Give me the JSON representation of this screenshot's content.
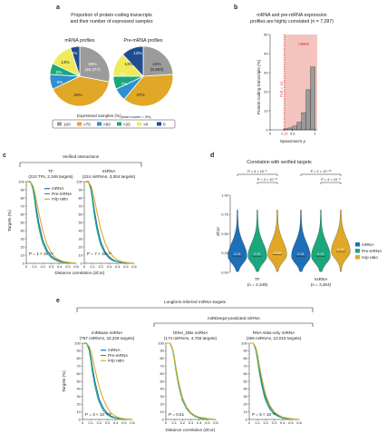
{
  "panels": {
    "a": {
      "label": "a",
      "title_lines": [
        "Proportion of protein-coding transcripts",
        "and their number of expressed samples"
      ],
      "legend_title_prefix": "Expressed samples (%)",
      "legend_title_suffix": "(read counts > 3%)",
      "legend_items": [
        {
          "label": "100",
          "color": "#9b9b9b"
        },
        {
          "label": ">75",
          "color": "#e0a826"
        },
        {
          "label": ">50",
          "color": "#2f8fcf"
        },
        {
          "label": ">25",
          "color": "#1aa77c"
        },
        {
          "label": ">0",
          "color": "#f0ea5a"
        },
        {
          "label": "0",
          "color": "#1f4e8f"
        }
      ]
    },
    "b": {
      "label": "b",
      "title_lines": [
        "mRNA and pre-mRNA expression",
        "profiles are highly correlated (n = 7,287)"
      ],
      "fdr_label": "FDR < .01",
      "percent_label": ">99%",
      "threshold_label": "0.32"
    },
    "c": {
      "label": "c",
      "group_label": "Verified interactions",
      "subplots": [
        {
          "title": "TF",
          "subtitle": "(210 TFs, 2,349 targets)",
          "pvalue": "P = 1 × 10⁻¹⁴"
        },
        {
          "title": "miRNA",
          "subtitle": "(224 miRNAs, 3,304 targets)",
          "pvalue": "P = 7 × 10⁻¹³"
        }
      ],
      "legend": [
        "mRNA",
        "Pre-mRNA",
        "m/p ratio"
      ]
    },
    "d": {
      "label": "d",
      "title": "Correlation with verified targets",
      "brackets": [
        {
          "top": "P = 4 × 10⁻⁶",
          "inner": "P = 3 × 10⁻¹⁷"
        },
        {
          "top": "P = 2 × 10⁻¹⁰",
          "inner": "P = 4 × 10⁻⁸"
        }
      ],
      "groups": [
        {
          "name": "TF",
          "n": "(n = 2,349)"
        },
        {
          "name": "miRNA",
          "n": "(n = 3,304)"
        }
      ],
      "legend": [
        "mRNA",
        "Pre-mRNA",
        "m/p ratio"
      ]
    },
    "e": {
      "label": "e",
      "group_label": "Longform-inferred miRNA-targets",
      "subgroup_label": "miRDeep2-predicted miRNA",
      "subplots": [
        {
          "title": "miRBase miRNA",
          "subtitle": "(757 miRNAs, 33,228 targets)",
          "pvalue": "P = 3 × 10⁻²⁰⁸"
        },
        {
          "title": "Other_DBs miRNA",
          "subtitle": "(174 miRNAs, 4,755 targets)",
          "pvalue": "P = 0.61"
        },
        {
          "title": "RNA Atlas-only miRNA",
          "subtitle": "(369 miRNAs, 10,016 targets)",
          "pvalue": "P = 5 × 10⁻⁸"
        }
      ],
      "legend": [
        "mRNA",
        "Pre-mRNA",
        "m/p ratio"
      ]
    }
  },
  "colors": {
    "mrna": "#1d6fb8",
    "premrna": "#1aa77c",
    "mp_ratio": "#e0a826",
    "hist_bar": "#9b9b9b",
    "shade": "#f3b8b3",
    "fdr_line": "#d22222"
  },
  "chart_data": [
    {
      "type": "pie",
      "panel": "a",
      "title": "mRNA profiles",
      "labels": [
        "100",
        ">75",
        ">50",
        ">25",
        ">0",
        "0"
      ],
      "values": [
        28,
        40,
        8,
        6,
        13,
        5
      ],
      "annotations": [
        "28%",
        "(10,477)",
        "40%",
        "8%",
        "6%",
        "13%",
        "5%"
      ]
    },
    {
      "type": "pie",
      "panel": "a",
      "title": "Pre-mRNA profiles",
      "labels": [
        "100",
        ">75",
        ">50",
        ">25",
        ">0",
        "0"
      ],
      "values": [
        24,
        37,
        7,
        7,
        13,
        12
      ],
      "annotations": [
        "24%",
        "(9,063)",
        "37%",
        "7%",
        "7%",
        "13%",
        "12%"
      ]
    },
    {
      "type": "bar",
      "panel": "b",
      "xlabel": "Spearman's ρ",
      "ylabel": "Protein-coding transcripts (%)",
      "bin_edges": [
        0,
        0.1,
        0.2,
        0.3,
        0.4,
        0.5,
        0.6,
        0.7,
        0.8,
        0.9,
        1.0
      ],
      "values": [
        0,
        0,
        0,
        0.5,
        1,
        2,
        4,
        9,
        21,
        33,
        44
      ],
      "ylim": [
        0,
        50
      ],
      "yticks": [
        0,
        10,
        20,
        30,
        40,
        50
      ],
      "xticks": [
        "0",
        "0.32",
        "0.5",
        "1"
      ],
      "threshold": 0.32
    },
    {
      "type": "line",
      "panel": "c",
      "title": "TF",
      "xlabel": "Distance correlation (dCor)",
      "ylabel": "Targets (%)",
      "xlim": [
        0,
        0.6
      ],
      "ylim": [
        0,
        100
      ],
      "xticks": [
        0,
        0.1,
        0.2,
        0.3,
        0.4,
        0.5,
        0.6
      ],
      "yticks": [
        0,
        10,
        20,
        30,
        40,
        50,
        60,
        70,
        80,
        90,
        100
      ],
      "x": [
        0,
        0.05,
        0.08,
        0.1,
        0.12,
        0.15,
        0.18,
        0.2,
        0.25,
        0.3,
        0.35,
        0.4,
        0.45,
        0.5,
        0.55,
        0.6
      ],
      "series": [
        {
          "name": "mRNA",
          "values": [
            100,
            100,
            93,
            82,
            68,
            50,
            36,
            28,
            16,
            9,
            5,
            3,
            2,
            1,
            0.5,
            0
          ]
        },
        {
          "name": "Pre-mRNA",
          "values": [
            100,
            100,
            91,
            78,
            62,
            44,
            31,
            24,
            13,
            7,
            4,
            2,
            1,
            0.5,
            0.3,
            0
          ]
        },
        {
          "name": "m/p ratio",
          "values": [
            100,
            99,
            95,
            88,
            78,
            62,
            48,
            39,
            23,
            13,
            7,
            4,
            2,
            1,
            0.5,
            0
          ]
        }
      ]
    },
    {
      "type": "line",
      "panel": "c",
      "title": "miRNA",
      "xlabel": "Distance correlation (dCor)",
      "ylabel": "Targets (%)",
      "xlim": [
        0,
        0.6
      ],
      "ylim": [
        0,
        100
      ],
      "xticks": [
        0,
        0.1,
        0.2,
        0.3,
        0.4,
        0.5,
        0.6
      ],
      "yticks": [
        0,
        10,
        20,
        30,
        40,
        50,
        60,
        70,
        80,
        90,
        100
      ],
      "x": [
        0,
        0.05,
        0.08,
        0.1,
        0.12,
        0.15,
        0.18,
        0.2,
        0.25,
        0.3,
        0.35,
        0.4,
        0.45,
        0.5,
        0.55,
        0.6
      ],
      "series": [
        {
          "name": "mRNA",
          "values": [
            100,
            100,
            92,
            80,
            66,
            48,
            34,
            26,
            14,
            8,
            4,
            2,
            1,
            0.5,
            0.3,
            0
          ]
        },
        {
          "name": "Pre-mRNA",
          "values": [
            100,
            100,
            90,
            76,
            60,
            42,
            29,
            22,
            12,
            6,
            3,
            2,
            1,
            0.5,
            0.2,
            0
          ]
        },
        {
          "name": "m/p ratio",
          "values": [
            100,
            99,
            95,
            89,
            79,
            64,
            50,
            41,
            25,
            14,
            8,
            4,
            2,
            1,
            0.5,
            0
          ]
        }
      ]
    },
    {
      "type": "violin",
      "panel": "d",
      "ylabel": "dCor",
      "ylim": [
        0,
        1
      ],
      "yticks": [
        0,
        0.25,
        0.5,
        0.75,
        1.0
      ],
      "groups": [
        {
          "name": "TF",
          "series": [
            {
              "name": "mRNA",
              "median": 0.21
            },
            {
              "name": "Pre-mRNA",
              "median": 0.21
            },
            {
              "name": "m/p ratio",
              "median": 0.23
            }
          ]
        },
        {
          "name": "miRNA",
          "series": [
            {
              "name": "mRNA",
              "median": 0.21
            },
            {
              "name": "Pre-mRNA",
              "median": 0.21
            },
            {
              "name": "m/p ratio",
              "median": 0.27
            }
          ]
        }
      ]
    },
    {
      "type": "line",
      "panel": "e",
      "title": "miRBase miRNA",
      "xlabel": "Distance correlation (dCor)",
      "ylabel": "Targets (%)",
      "xlim": [
        0,
        0.6
      ],
      "ylim": [
        0,
        100
      ],
      "xticks": [
        0,
        0.1,
        0.2,
        0.3,
        0.4,
        0.5,
        0.6
      ],
      "yticks": [
        0,
        10,
        20,
        30,
        40,
        50,
        60,
        70,
        80,
        90,
        100
      ],
      "x": [
        0,
        0.05,
        0.08,
        0.1,
        0.12,
        0.15,
        0.18,
        0.2,
        0.25,
        0.3,
        0.35,
        0.4,
        0.45,
        0.5,
        0.55,
        0.6
      ],
      "series": [
        {
          "name": "mRNA",
          "values": [
            100,
            100,
            93,
            82,
            68,
            50,
            36,
            27,
            15,
            8,
            4,
            2,
            1,
            0.5,
            0.3,
            0
          ]
        },
        {
          "name": "Pre-mRNA",
          "values": [
            100,
            100,
            91,
            78,
            62,
            44,
            30,
            23,
            12,
            6,
            3,
            2,
            1,
            0.5,
            0.2,
            0
          ]
        },
        {
          "name": "m/p ratio",
          "values": [
            100,
            99,
            96,
            90,
            81,
            66,
            52,
            43,
            27,
            15,
            8,
            4,
            2,
            1,
            0.5,
            0
          ]
        }
      ]
    },
    {
      "type": "line",
      "panel": "e",
      "title": "Other_DBs miRNA",
      "xlabel": "Distance correlation (dCor)",
      "ylabel": "Targets (%)",
      "xlim": [
        0,
        0.6
      ],
      "ylim": [
        0,
        100
      ],
      "xticks": [
        0,
        0.1,
        0.2,
        0.3,
        0.4,
        0.5,
        0.6
      ],
      "yticks": [
        0,
        10,
        20,
        30,
        40,
        50,
        60,
        70,
        80,
        90,
        100
      ],
      "x": [
        0,
        0.05,
        0.08,
        0.1,
        0.12,
        0.15,
        0.18,
        0.2,
        0.25,
        0.3,
        0.35,
        0.4,
        0.45,
        0.5,
        0.55,
        0.6
      ],
      "series": [
        {
          "name": "mRNA",
          "values": [
            100,
            100,
            93,
            82,
            68,
            50,
            36,
            28,
            16,
            9,
            5,
            3,
            2,
            1,
            0.5,
            0
          ]
        },
        {
          "name": "Pre-mRNA",
          "values": [
            100,
            100,
            92,
            80,
            65,
            47,
            33,
            25,
            14,
            8,
            4,
            2,
            1,
            0.5,
            0.3,
            0
          ]
        },
        {
          "name": "m/p ratio",
          "values": [
            100,
            100,
            93,
            82,
            68,
            51,
            37,
            28,
            16,
            9,
            5,
            3,
            2,
            1,
            0.5,
            0
          ]
        }
      ]
    },
    {
      "type": "line",
      "panel": "e",
      "title": "RNA Atlas-only miRNA",
      "xlabel": "Distance correlation (dCor)",
      "ylabel": "Targets (%)",
      "xlim": [
        0,
        0.6
      ],
      "ylim": [
        0,
        100
      ],
      "xticks": [
        0,
        0.1,
        0.2,
        0.3,
        0.4,
        0.5,
        0.6
      ],
      "yticks": [
        0,
        10,
        20,
        30,
        40,
        50,
        60,
        70,
        80,
        90,
        100
      ],
      "x": [
        0,
        0.05,
        0.08,
        0.1,
        0.12,
        0.15,
        0.18,
        0.2,
        0.25,
        0.3,
        0.35,
        0.4,
        0.45,
        0.5,
        0.55,
        0.6
      ],
      "series": [
        {
          "name": "mRNA",
          "values": [
            100,
            100,
            93,
            82,
            68,
            50,
            36,
            28,
            16,
            9,
            5,
            3,
            2,
            1,
            0.5,
            0
          ]
        },
        {
          "name": "Pre-mRNA",
          "values": [
            100,
            100,
            91,
            78,
            63,
            45,
            31,
            24,
            13,
            7,
            4,
            2,
            1,
            0.5,
            0.2,
            0
          ]
        },
        {
          "name": "m/p ratio",
          "values": [
            100,
            100,
            94,
            85,
            72,
            55,
            40,
            32,
            18,
            10,
            6,
            3,
            2,
            1,
            0.5,
            0
          ]
        }
      ]
    }
  ]
}
